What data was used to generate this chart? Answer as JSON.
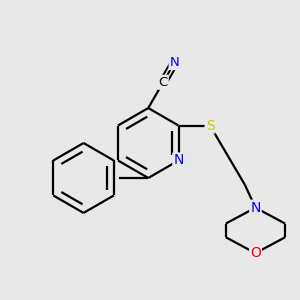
{
  "bg_color": "#e8e8e8",
  "bond_color": "#000000",
  "atom_colors": {
    "N": "#0000ff",
    "O": "#ff0000",
    "S": "#cccc00",
    "C": "#000000"
  },
  "line_width": 1.6,
  "figsize": [
    3.0,
    3.0
  ],
  "dpi": 100
}
